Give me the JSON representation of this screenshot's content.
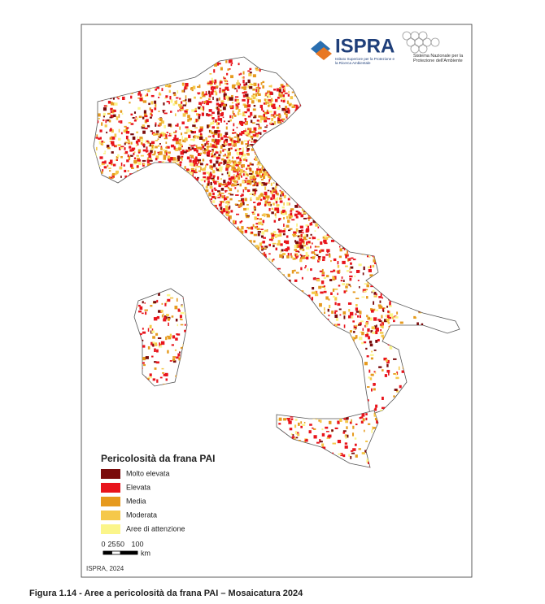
{
  "header": {
    "ispra_logo": "ISPRA",
    "ispra_subtitle": "Istituto Superiore per la Protezione e la Ricerca Ambientale",
    "snpa_text": "Sistema Nazionale per la Protezione dell'Ambiente"
  },
  "legend": {
    "title": "Pericolosità da frana PAI",
    "items": [
      {
        "label": "Molto elevata",
        "color": "#7a0c0c"
      },
      {
        "label": "Elevata",
        "color": "#e8141c"
      },
      {
        "label": "Media",
        "color": "#e69a1e"
      },
      {
        "label": "Moderata",
        "color": "#f5c84a"
      },
      {
        "label": "Aree di attenzione",
        "color": "#fbf58a"
      }
    ]
  },
  "scale_bar": {
    "ticks": [
      0,
      25,
      50,
      100
    ],
    "unit": "km"
  },
  "source": "ISPRA, 2024",
  "caption": "Figura 1.14 - Aree a pericolosità da frana PAI – Mosaicatura 2024"
}
